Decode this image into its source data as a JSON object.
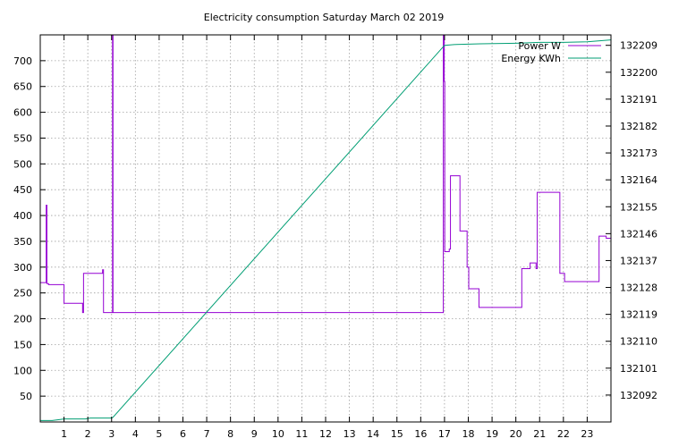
{
  "chart_data": {
    "type": "line",
    "title": "Electricity consumption Saturday March 02 2019",
    "xlabel": "",
    "ylabel": "",
    "xlim": [
      0,
      24
    ],
    "ylim": [
      0,
      750
    ],
    "y2lim": [
      132083,
      132212.5
    ],
    "grid": true,
    "legend_position": "top-right",
    "x_ticks": [
      {
        "v": 1,
        "label": "1"
      },
      {
        "v": 2,
        "label": "2"
      },
      {
        "v": 3,
        "label": "3"
      },
      {
        "v": 4,
        "label": "4"
      },
      {
        "v": 5,
        "label": "5"
      },
      {
        "v": 6,
        "label": "6"
      },
      {
        "v": 7,
        "label": "7"
      },
      {
        "v": 8,
        "label": "8"
      },
      {
        "v": 9,
        "label": "9"
      },
      {
        "v": 10,
        "label": "10"
      },
      {
        "v": 11,
        "label": "11"
      },
      {
        "v": 12,
        "label": "12"
      },
      {
        "v": 13,
        "label": "13"
      },
      {
        "v": 14,
        "label": "14"
      },
      {
        "v": 15,
        "label": "15"
      },
      {
        "v": 16,
        "label": "16"
      },
      {
        "v": 17,
        "label": "17"
      },
      {
        "v": 18,
        "label": "18"
      },
      {
        "v": 19,
        "label": "19"
      },
      {
        "v": 20,
        "label": "20"
      },
      {
        "v": 21,
        "label": "21"
      },
      {
        "v": 22,
        "label": "22"
      },
      {
        "v": 23,
        "label": "23"
      }
    ],
    "y_ticks": [
      {
        "v": 50,
        "label": "50"
      },
      {
        "v": 100,
        "label": "100"
      },
      {
        "v": 150,
        "label": "150"
      },
      {
        "v": 200,
        "label": "200"
      },
      {
        "v": 250,
        "label": "250"
      },
      {
        "v": 300,
        "label": "300"
      },
      {
        "v": 350,
        "label": "350"
      },
      {
        "v": 400,
        "label": "400"
      },
      {
        "v": 450,
        "label": "450"
      },
      {
        "v": 500,
        "label": "500"
      },
      {
        "v": 550,
        "label": "550"
      },
      {
        "v": 600,
        "label": "600"
      },
      {
        "v": 650,
        "label": "650"
      },
      {
        "v": 700,
        "label": "700"
      }
    ],
    "y2_ticks": [
      {
        "v": 132092,
        "label": "132092"
      },
      {
        "v": 132101,
        "label": "132101"
      },
      {
        "v": 132110,
        "label": "132110"
      },
      {
        "v": 132119,
        "label": "132119"
      },
      {
        "v": 132128,
        "label": "132128"
      },
      {
        "v": 132137,
        "label": "132137"
      },
      {
        "v": 132146,
        "label": "132146"
      },
      {
        "v": 132155,
        "label": "132155"
      },
      {
        "v": 132164,
        "label": "132164"
      },
      {
        "v": 132173,
        "label": "132173"
      },
      {
        "v": 132182,
        "label": "132182"
      },
      {
        "v": 132191,
        "label": "132191"
      },
      {
        "v": 132200,
        "label": "132200"
      },
      {
        "v": 132209,
        "label": "132209"
      }
    ],
    "series": [
      {
        "name": "Power W",
        "color": "#9400d3",
        "axis": "y",
        "points": [
          [
            0,
            270
          ],
          [
            0.25,
            270
          ],
          [
            0.25,
            420
          ],
          [
            0.28,
            420
          ],
          [
            0.28,
            268
          ],
          [
            0.35,
            268
          ],
          [
            0.35,
            266
          ],
          [
            1.0,
            266
          ],
          [
            1.0,
            230
          ],
          [
            1.78,
            230
          ],
          [
            1.78,
            212
          ],
          [
            1.82,
            212
          ],
          [
            1.82,
            288
          ],
          [
            2.62,
            288
          ],
          [
            2.62,
            295
          ],
          [
            2.66,
            295
          ],
          [
            2.66,
            212
          ],
          [
            3.04,
            212
          ],
          [
            3.04,
            750
          ],
          [
            3.06,
            750
          ],
          [
            3.06,
            212
          ],
          [
            16.95,
            212
          ],
          [
            16.95,
            750
          ],
          [
            16.99,
            750
          ],
          [
            16.99,
            660
          ],
          [
            17.01,
            660
          ],
          [
            17.01,
            330
          ],
          [
            17.2,
            330
          ],
          [
            17.2,
            335
          ],
          [
            17.25,
            335
          ],
          [
            17.25,
            477
          ],
          [
            17.65,
            477
          ],
          [
            17.65,
            370
          ],
          [
            17.95,
            370
          ],
          [
            17.95,
            300
          ],
          [
            18.02,
            300
          ],
          [
            18.02,
            258
          ],
          [
            18.45,
            258
          ],
          [
            18.45,
            222
          ],
          [
            20.25,
            222
          ],
          [
            20.25,
            297
          ],
          [
            20.6,
            297
          ],
          [
            20.6,
            308
          ],
          [
            20.85,
            308
          ],
          [
            20.85,
            297
          ],
          [
            20.9,
            297
          ],
          [
            20.9,
            445
          ],
          [
            21.85,
            445
          ],
          [
            21.85,
            288
          ],
          [
            22.05,
            288
          ],
          [
            22.05,
            272
          ],
          [
            23.5,
            272
          ],
          [
            23.5,
            360
          ],
          [
            23.8,
            360
          ],
          [
            23.8,
            356
          ],
          [
            24,
            356
          ]
        ]
      },
      {
        "name": "Energy KWh",
        "color": "#009e73",
        "axis": "y2",
        "points": [
          [
            0,
            132083.5
          ],
          [
            0.5,
            132083.5
          ],
          [
            0.8,
            132083.8
          ],
          [
            1.0,
            132084.0
          ],
          [
            1.9,
            132084.0
          ],
          [
            2.1,
            132084.3
          ],
          [
            3.0,
            132084.3
          ],
          [
            3.05,
            132084.5
          ],
          [
            17.0,
            132209.0
          ],
          [
            17.5,
            132209.3
          ],
          [
            18.5,
            132209.5
          ],
          [
            20.0,
            132209.7
          ],
          [
            21.0,
            132210.0
          ],
          [
            22.0,
            132210.0
          ],
          [
            23.0,
            132210.2
          ],
          [
            24,
            132210.8
          ]
        ]
      }
    ]
  }
}
